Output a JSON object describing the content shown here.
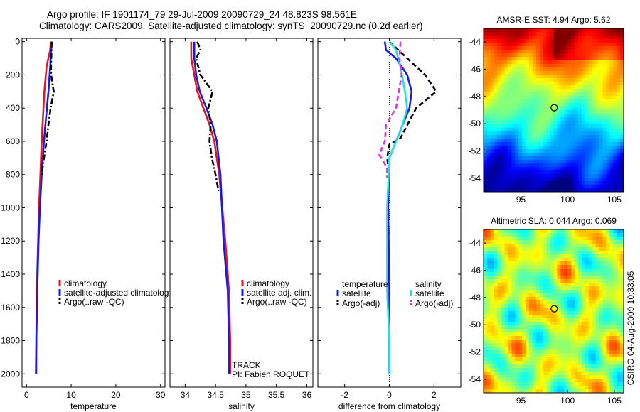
{
  "header": {
    "line1": "Argo profile: IF 1901174_79 29-Jul-2009 20090729_24 48.823S 98.561E",
    "line2": "Climatology: CARS2009. Satellite-adjusted climatology: synTS_20090729.nc (0.2d earlier)"
  },
  "colors": {
    "climatology": "#e8141e",
    "satellite": "#1a1ae6",
    "argo": "#000000",
    "satellite_salinity": "#22e0e0",
    "argo_adj_salinity": "#e030e0"
  },
  "chart_data": [
    {
      "type": "line",
      "xlabel": "temperature",
      "ylabel": "",
      "xlim": [
        -1,
        31
      ],
      "ylim": [
        2080,
        -20
      ],
      "y_reversed": true,
      "xticks": [
        0,
        10,
        20,
        30
      ],
      "yticks": [
        0,
        200,
        400,
        600,
        800,
        1000,
        1200,
        1400,
        1600,
        1800,
        2000
      ],
      "series": [
        {
          "name": "climatology",
          "color_key": "climatology",
          "dash": "solid",
          "x": [
            5.5,
            5.3,
            4.5,
            4.0,
            3.7,
            3.4,
            3.1,
            2.8,
            2.6,
            2.3,
            2.2,
            2.2
          ],
          "y": [
            0,
            50,
            150,
            300,
            450,
            600,
            800,
            1000,
            1200,
            1500,
            1800,
            2000
          ]
        },
        {
          "name": "satellite-adjusted climatology",
          "color_key": "satellite",
          "dash": "solid",
          "x": [
            5.7,
            5.5,
            5.3,
            4.9,
            4.4,
            3.9,
            3.4,
            3.0,
            2.7,
            2.4,
            2.2,
            2.1
          ],
          "y": [
            0,
            50,
            150,
            300,
            450,
            600,
            800,
            1000,
            1200,
            1500,
            1800,
            2000
          ]
        },
        {
          "name": "Argo(..raw -QC)",
          "color_key": "argo",
          "dash": "dashdot",
          "x": [
            5.6,
            5.6,
            5.5,
            5.5,
            6.1,
            5.4,
            4.9,
            4.5,
            3.9,
            3.4
          ],
          "y": [
            0,
            50,
            150,
            200,
            300,
            400,
            500,
            600,
            700,
            800
          ]
        }
      ],
      "legend": [
        "climatology",
        "satellite-adjusted climatolog",
        "Argo(..raw -QC)"
      ],
      "legend_position": "middle-right"
    },
    {
      "type": "line",
      "xlabel": "salinity",
      "ylabel": "",
      "xlim": [
        33.75,
        36.1
      ],
      "ylim": [
        2080,
        -20
      ],
      "y_reversed": true,
      "xticks": [
        34,
        34.5,
        35,
        35.5,
        36
      ],
      "xticklabels": [
        "34",
        "34.5",
        "35",
        "35.5",
        "36"
      ],
      "series": [
        {
          "name": "climatology",
          "color_key": "climatology",
          "dash": "solid",
          "x": [
            34.1,
            34.1,
            34.15,
            34.2,
            34.3,
            34.4,
            34.48,
            34.56,
            34.66,
            34.72,
            34.74,
            34.74
          ],
          "y": [
            0,
            100,
            200,
            300,
            400,
            500,
            600,
            800,
            1200,
            1500,
            1800,
            2000
          ]
        },
        {
          "name": "satellite adj. clim.",
          "color_key": "satellite",
          "dash": "solid",
          "x": [
            34.15,
            34.15,
            34.18,
            34.24,
            34.35,
            34.45,
            34.52,
            34.58,
            34.63,
            34.7,
            34.72,
            34.72
          ],
          "y": [
            0,
            100,
            200,
            300,
            400,
            500,
            600,
            800,
            1200,
            1500,
            1800,
            2000
          ]
        },
        {
          "name": "Argo(..raw -QC)",
          "color_key": "argo",
          "dash": "dashdot",
          "x": [
            34.2,
            34.25,
            34.18,
            34.25,
            34.45,
            34.38,
            34.42,
            34.4,
            34.44,
            34.5,
            34.55
          ],
          "y": [
            0,
            50,
            100,
            200,
            300,
            400,
            500,
            600,
            700,
            800,
            900
          ]
        }
      ],
      "legend": [
        "climatology",
        "satellite adj. clim.",
        "Argo(..raw -QC)"
      ],
      "legend_position": "middle-right",
      "annotations": [
        "TRACK",
        "PI: Fabien ROQUET"
      ]
    },
    {
      "type": "line",
      "xlabel": "difference from climatology",
      "ylabel": "",
      "xlim": [
        -3.2,
        3.2
      ],
      "ylim": [
        2080,
        -20
      ],
      "y_reversed": true,
      "xticks": [
        -2,
        0,
        2
      ],
      "xticklabels": [
        "-2",
        "0",
        "2"
      ],
      "series": [
        {
          "name": "temperature satellite",
          "color_key": "satellite",
          "dash": "solid",
          "x": [
            -0.2,
            -0.15,
            0.3,
            0.8,
            1.0,
            0.9,
            0.6,
            0.3,
            0.0,
            -0.05,
            0.0,
            0.0,
            0.0
          ],
          "y": [
            0,
            50,
            100,
            200,
            300,
            400,
            500,
            600,
            700,
            1000,
            1500,
            1800,
            2000
          ]
        },
        {
          "name": "temperature Argo(-adj)",
          "color_key": "argo",
          "dash": "dashed",
          "x": [
            0.0,
            1.2,
            1.6,
            2.1,
            1.2,
            0.5,
            0.0,
            -0.1,
            0.0
          ],
          "y": [
            0,
            150,
            200,
            300,
            400,
            580,
            620,
            700,
            800
          ]
        },
        {
          "name": "salinity satellite",
          "color_key": "satellite_salinity",
          "dash": "solid",
          "x": [
            0.0,
            0.3,
            0.5,
            0.7,
            0.8,
            0.6,
            0.3,
            0.0,
            -0.1,
            -0.1,
            0.0,
            0.0
          ],
          "y": [
            0,
            50,
            150,
            300,
            400,
            500,
            600,
            700,
            1000,
            1500,
            1800,
            2000
          ]
        },
        {
          "name": "salinity Argo(-adj)",
          "color_key": "argo_adj_salinity",
          "dash": "dashed",
          "x": [
            0.5,
            0.45,
            0.55,
            0.3,
            -0.15,
            -0.2,
            -0.45,
            -0.1,
            -0.1
          ],
          "y": [
            0,
            100,
            200,
            400,
            500,
            600,
            680,
            760,
            820
          ]
        }
      ],
      "legend_headers": [
        "temperature",
        "salinity"
      ],
      "legend": [
        "satellite",
        "Argo(-adj)",
        "satellite",
        "Argo(-adj)"
      ],
      "legend_position": "lower-middle"
    },
    {
      "type": "heatmap",
      "title": "AMSR-E SST: 4.94  Argo: 5.62",
      "xlim": [
        91,
        106
      ],
      "ylim": [
        -55,
        -43
      ],
      "xticks": [
        95,
        100,
        105
      ],
      "yticks": [
        -44,
        -46,
        -48,
        -50,
        -52,
        -54
      ],
      "yticklabels": [
        "-44",
        "-46",
        "-48",
        "-50",
        "-52",
        "-54"
      ],
      "marker": {
        "lon": 98.561,
        "lat": -48.823
      },
      "colormap": "jet"
    },
    {
      "type": "heatmap",
      "title": "Altimetric SLA: 0.044  Argo: 0.069",
      "xlim": [
        91,
        106
      ],
      "ylim": [
        -55,
        -43
      ],
      "xticks": [
        95,
        100,
        105
      ],
      "yticks": [
        -44,
        -46,
        -48,
        -50,
        -52,
        -54
      ],
      "yticklabels": [
        "-44",
        "-46",
        "-48",
        "-50",
        "-52",
        "-54"
      ],
      "marker": {
        "lon": 98.561,
        "lat": -48.823
      },
      "colormap": "jet"
    }
  ],
  "side_credit": "CSIRO 04-Aug-2009 10:33:05"
}
